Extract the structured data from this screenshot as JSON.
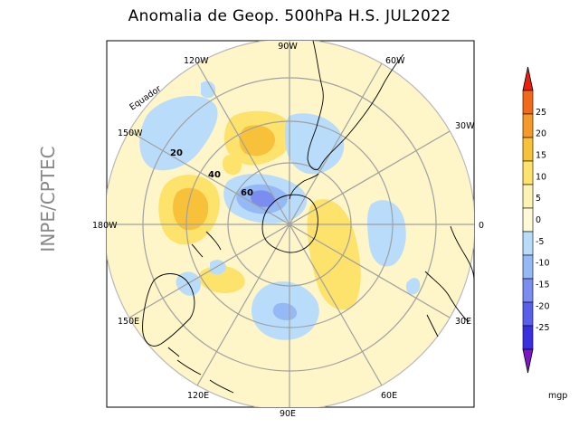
{
  "title": "Anomalia de Geop. 500hPa H.S. JUL2022",
  "side_label": "INPE/CPTEC",
  "longitude_labels": [
    {
      "key": "lon_90w",
      "text": "90W"
    },
    {
      "key": "lon_60w",
      "text": "60W"
    },
    {
      "key": "lon_30w",
      "text": "30W"
    },
    {
      "key": "lon_0",
      "text": "0"
    },
    {
      "key": "lon_30e",
      "text": "30E"
    },
    {
      "key": "lon_60e",
      "text": "60E"
    },
    {
      "key": "lon_90e",
      "text": "90E"
    },
    {
      "key": "lon_120e",
      "text": "120E"
    },
    {
      "key": "lon_150e",
      "text": "150E"
    },
    {
      "key": "lon_180w",
      "text": "180W"
    },
    {
      "key": "lon_150w",
      "text": "150W"
    },
    {
      "key": "lon_120w",
      "text": "120W"
    }
  ],
  "latitude_labels": {
    "lat20": "20",
    "lat40": "40",
    "lat60": "60",
    "equator": "Equador"
  },
  "colorbar": {
    "unit": "mgp",
    "ticks": [
      "25",
      "20",
      "15",
      "10",
      "5",
      "0",
      "-5",
      "-10",
      "-15",
      "-20",
      "-25"
    ],
    "colors": [
      "#e8200e",
      "#f06a1a",
      "#f59a2a",
      "#f8c13a",
      "#fde36c",
      "#fdf3b5",
      "#fff9d8",
      "#b9dcfb",
      "#94b9f5",
      "#7b8df0",
      "#5a5fe9",
      "#3a2fe0",
      "#7a18c8"
    ]
  },
  "colors": {
    "neutral": "#fef6c8",
    "pos_light": "#fde36c",
    "pos_mid": "#f8c13a",
    "neg_light": "#b9dcfb",
    "neg_mid": "#94b9f5",
    "neg_dark": "#7b8df0",
    "grid": "#a0a0a0"
  }
}
